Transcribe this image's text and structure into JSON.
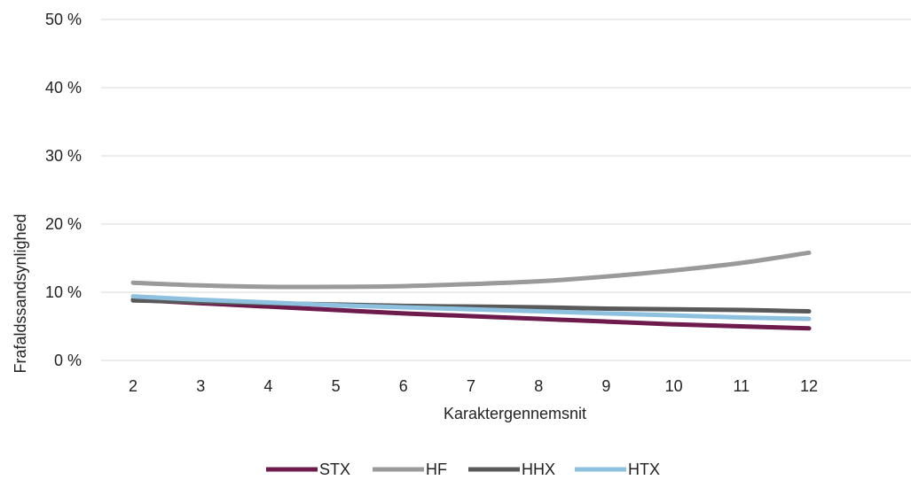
{
  "chart_data": {
    "type": "line",
    "title": "",
    "xlabel": "Karaktergennemsnit",
    "ylabel": "Frafaldssandsynlighed",
    "x": [
      2,
      3,
      4,
      5,
      6,
      7,
      8,
      9,
      10,
      11,
      12
    ],
    "x_tick_labels": [
      "2",
      "3",
      "4",
      "5",
      "6",
      "7",
      "8",
      "9",
      "10",
      "11",
      "12"
    ],
    "xlim": [
      2,
      13
    ],
    "ylim": [
      0,
      50
    ],
    "y_ticks": [
      0,
      10,
      20,
      30,
      40,
      50
    ],
    "y_tick_labels": [
      "0 %",
      "10 %",
      "20 %",
      "30 %",
      "40 %",
      "50 %"
    ],
    "grid": true,
    "legend_position": "bottom",
    "series": [
      {
        "name": "STX",
        "color": "#6d1a4d",
        "values": [
          8.9,
          8.4,
          7.9,
          7.4,
          6.9,
          6.5,
          6.1,
          5.7,
          5.3,
          5.0,
          4.7
        ]
      },
      {
        "name": "HF",
        "color": "#9a9a9a",
        "values": [
          11.4,
          11.0,
          10.8,
          10.8,
          10.9,
          11.2,
          11.6,
          12.3,
          13.2,
          14.3,
          15.8
        ]
      },
      {
        "name": "HHX",
        "color": "#595959",
        "values": [
          8.8,
          8.6,
          8.4,
          8.2,
          8.0,
          7.9,
          7.8,
          7.6,
          7.5,
          7.4,
          7.2
        ]
      },
      {
        "name": "HTX",
        "color": "#8ec1df",
        "values": [
          9.4,
          8.9,
          8.5,
          8.1,
          7.8,
          7.5,
          7.2,
          6.9,
          6.6,
          6.3,
          6.1
        ]
      }
    ]
  }
}
